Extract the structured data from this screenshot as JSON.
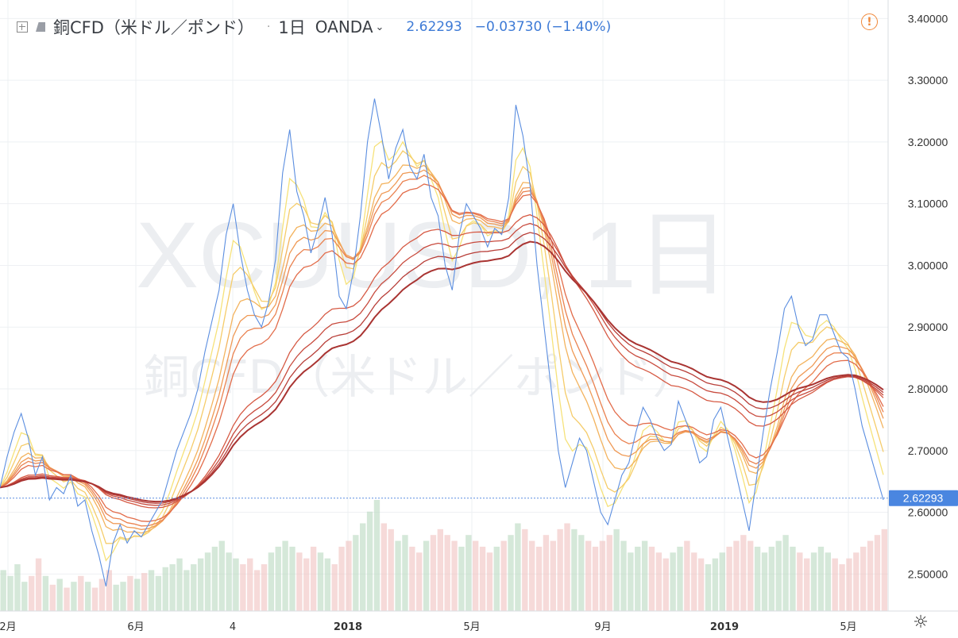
{
  "header": {
    "title": "銅CFD（米ドル／ポンド）",
    "dot": "·",
    "timeframe": "1日",
    "source": "OANDA",
    "price": "2.62293",
    "change": "−0.03730 (−1.40%)"
  },
  "watermark": {
    "line1": "XCUUSD, 1日",
    "line2": "銅CFD（米ドル／ポンド）"
  },
  "current_price_label": "2.62293",
  "colors": {
    "price_line": "#5b8ee0",
    "price_label_bg": "#4a86e0",
    "ribbon": [
      "#f6e27a",
      "#f5cc6a",
      "#f3b35e",
      "#ef9a56",
      "#ea8250",
      "#e26c4a",
      "#d65a44",
      "#c84b3e",
      "#b83e38",
      "#a93432"
    ],
    "volume_up": "#b9d8c0",
    "volume_down": "#f0c2c0",
    "grid": "#eef0f3",
    "axis_text": "#333333",
    "warning": "#f0883a"
  },
  "icons": [
    "expand-icon",
    "symbol-icon",
    "chevron-down-icon",
    "warning-icon",
    "gear-icon"
  ],
  "chart_data": {
    "type": "line",
    "x_ticks": [
      "2月",
      "6月",
      "4",
      "2018",
      "5月",
      "9月",
      "2019",
      "5月"
    ],
    "y_ticks": [
      "3.40000",
      "3.30000",
      "3.20000",
      "3.10000",
      "3.00000",
      "2.90000",
      "2.80000",
      "2.70000",
      "2.60000",
      "2.50000"
    ],
    "ylim": [
      2.44,
      3.43
    ],
    "grid": true,
    "series": [
      {
        "values": [
          2.64,
          2.69,
          2.73,
          2.76,
          2.72,
          2.66,
          2.69,
          2.62,
          2.64,
          2.63,
          2.66,
          2.61,
          2.62,
          2.57,
          2.53,
          2.48,
          2.55,
          2.58,
          2.55,
          2.57,
          2.56,
          2.58,
          2.6,
          2.62,
          2.66,
          2.7,
          2.73,
          2.76,
          2.8,
          2.86,
          2.91,
          2.96,
          3.05,
          3.1,
          3.02,
          2.96,
          2.92,
          2.9,
          2.94,
          3.01,
          3.15,
          3.22,
          3.12,
          3.08,
          3.02,
          3.06,
          3.11,
          3.05,
          2.95,
          2.93,
          2.99,
          3.08,
          3.2,
          3.27,
          3.21,
          3.14,
          3.19,
          3.22,
          3.16,
          3.14,
          3.18,
          3.11,
          3.08,
          3.0,
          2.96,
          3.05,
          3.1,
          3.08,
          3.06,
          3.03,
          3.06,
          3.05,
          3.11,
          3.26,
          3.21,
          3.13,
          3.0,
          2.9,
          2.8,
          2.7,
          2.64,
          2.68,
          2.72,
          2.7,
          2.65,
          2.6,
          2.58,
          2.62,
          2.66,
          2.68,
          2.73,
          2.77,
          2.75,
          2.72,
          2.7,
          2.71,
          2.78,
          2.75,
          2.72,
          2.68,
          2.69,
          2.75,
          2.77,
          2.72,
          2.67,
          2.62,
          2.57,
          2.65,
          2.73,
          2.8,
          2.86,
          2.93,
          2.95,
          2.9,
          2.87,
          2.88,
          2.92,
          2.92,
          2.89,
          2.86,
          2.85,
          2.8,
          2.74,
          2.7,
          2.66,
          2.62
        ]
      }
    ],
    "ribbon_periods": [
      3,
      5,
      8,
      10,
      12,
      15,
      30,
      35,
      40,
      45
    ],
    "volume": [
      14,
      12,
      16,
      10,
      12,
      18,
      12,
      9,
      11,
      8,
      10,
      12,
      10,
      8,
      11,
      14,
      9,
      10,
      12,
      11,
      13,
      14,
      12,
      15,
      16,
      18,
      14,
      16,
      18,
      20,
      22,
      24,
      20,
      18,
      16,
      18,
      14,
      16,
      20,
      22,
      24,
      22,
      20,
      18,
      22,
      20,
      18,
      16,
      22,
      24,
      26,
      30,
      34,
      38,
      30,
      28,
      24,
      26,
      22,
      20,
      24,
      26,
      28,
      26,
      24,
      22,
      26,
      24,
      22,
      20,
      22,
      24,
      26,
      30,
      28,
      24,
      22,
      26,
      24,
      28,
      30,
      28,
      26,
      24,
      22,
      24,
      26,
      28,
      24,
      20,
      22,
      24,
      22,
      20,
      18,
      20,
      22,
      24,
      20,
      18,
      16,
      18,
      20,
      22,
      24,
      26,
      24,
      22,
      20,
      22,
      24,
      26,
      22,
      20,
      18,
      20,
      22,
      20,
      18,
      16,
      18,
      20,
      22,
      24,
      26,
      28
    ]
  }
}
